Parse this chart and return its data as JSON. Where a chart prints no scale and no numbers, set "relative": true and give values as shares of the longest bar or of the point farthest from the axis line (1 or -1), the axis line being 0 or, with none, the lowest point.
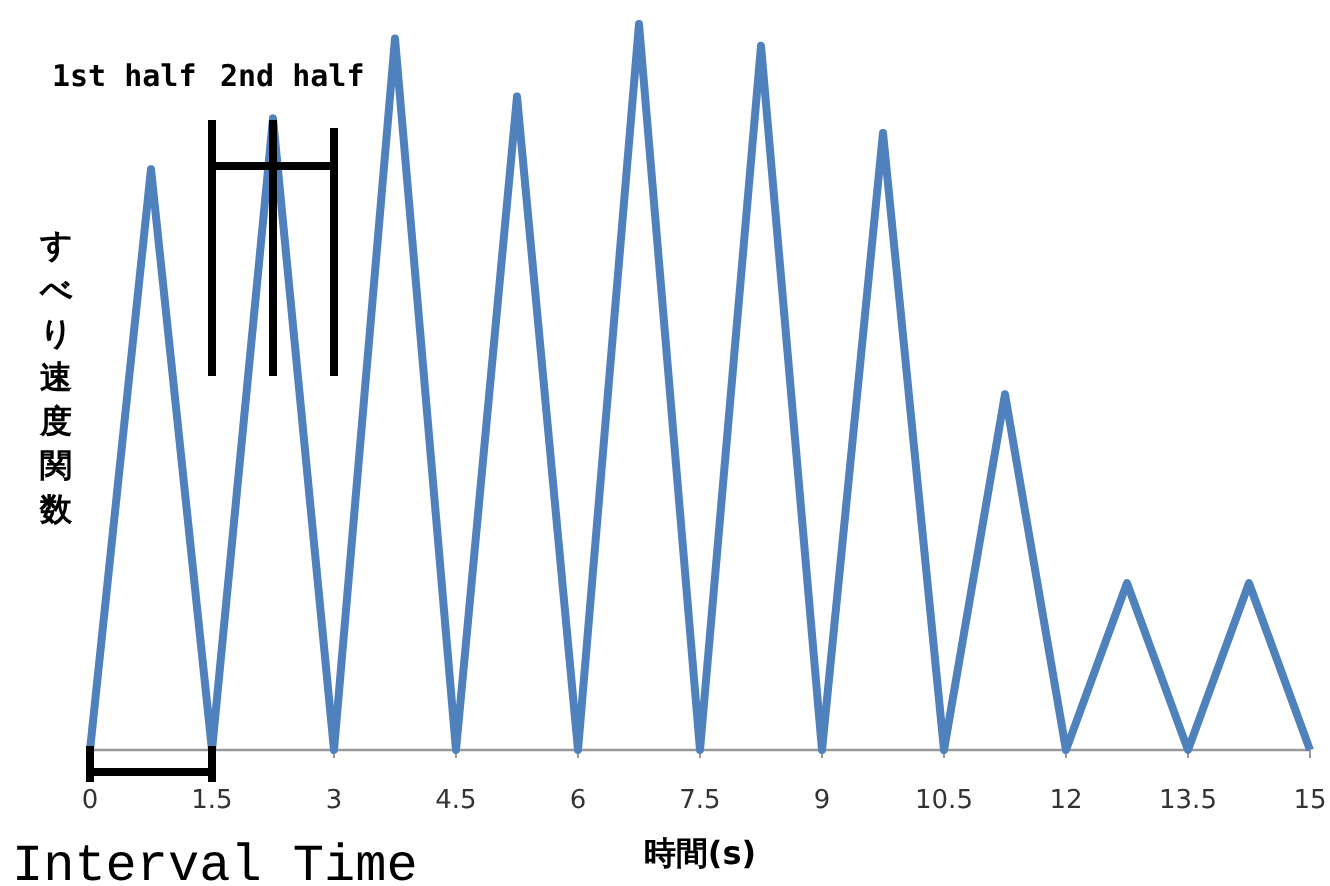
{
  "chart_data": {
    "type": "line",
    "relative": true,
    "xlabel": "時間(s)",
    "ylabel": "すべり速度関数",
    "x": [
      0,
      0.75,
      1.5,
      2.25,
      3,
      3.75,
      4.5,
      5.25,
      6,
      6.75,
      7.5,
      8.25,
      9,
      9.75,
      10.5,
      11.25,
      12,
      12.75,
      13.5,
      14.25,
      15
    ],
    "values": [
      0,
      0.8,
      0,
      0.87,
      0,
      0.98,
      0,
      0.9,
      0,
      1,
      0,
      0.97,
      0,
      0.85,
      0,
      0.49,
      0,
      0.23,
      0,
      0.23,
      0
    ],
    "color": "#4f81bd",
    "xlim": [
      0,
      15
    ],
    "xticks": [
      0,
      1.5,
      3,
      4.5,
      6,
      7.5,
      9,
      10.5,
      12,
      13.5,
      15
    ],
    "annotations": [
      "1st half",
      "2nd half",
      "Interval Time"
    ]
  }
}
